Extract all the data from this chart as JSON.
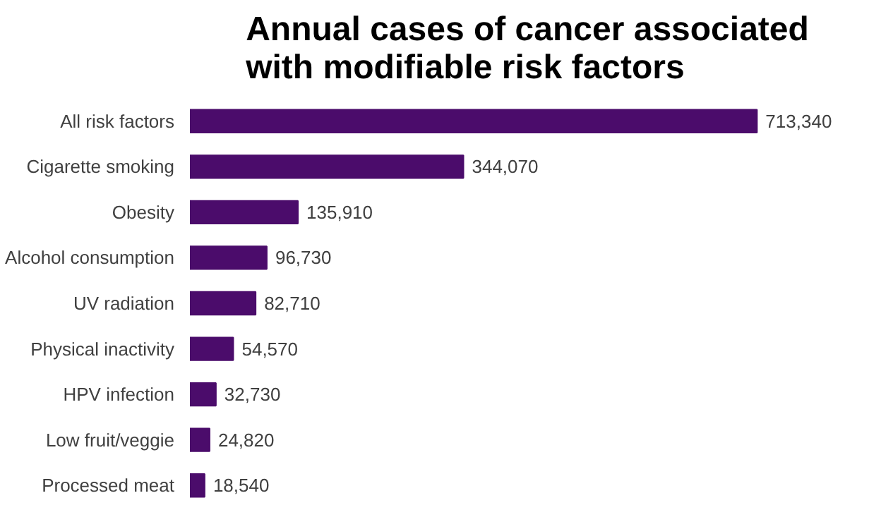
{
  "chart_data": {
    "type": "bar",
    "orientation": "horizontal",
    "title": "Annual cases of cancer associated\nwith modifiable risk factors",
    "categories": [
      "All risk factors",
      "Cigarette smoking",
      "Obesity",
      "Alcohol consumption",
      "UV radiation",
      "Physical inactivity",
      "HPV infection",
      "Low fruit/veggie",
      "Processed meat"
    ],
    "values": [
      713340,
      344070,
      135910,
      96730,
      82710,
      54570,
      32730,
      24820,
      18540
    ],
    "value_labels": [
      "713,340",
      "344,070",
      "135,910",
      "96,730",
      "82,710",
      "54,570",
      "32,730",
      "24,820",
      "18,540"
    ],
    "color": "#4b0c6b",
    "grid": false
  }
}
